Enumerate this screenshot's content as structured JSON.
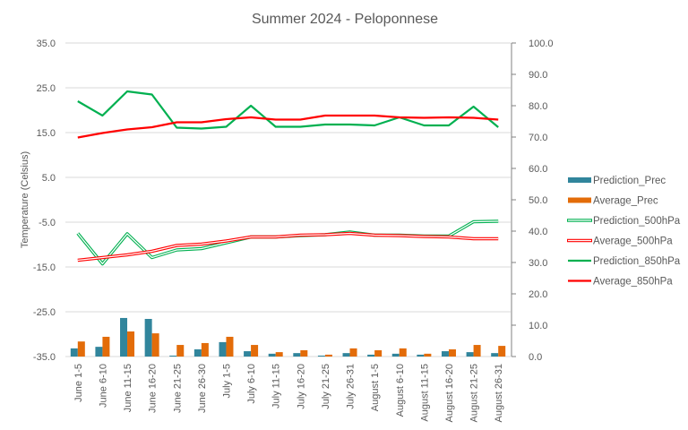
{
  "chart_data": {
    "type": "bar+line",
    "title": "Summer 2024 - Peloponnese",
    "ylabel": "Temperature (Celsius)",
    "ylabel_right": "",
    "ylim": [
      -35,
      35
    ],
    "ylim_right": [
      0,
      100
    ],
    "yticks": [
      "35.0",
      "25.0",
      "15.0",
      "5.0",
      "-5.0",
      "-15.0",
      "-25.0",
      "-35.0"
    ],
    "yticks_right": [
      "100.0",
      "90.0",
      "80.0",
      "70.0",
      "60.0",
      "50.0",
      "40.0",
      "30.0",
      "20.0",
      "10.0",
      "0.0"
    ],
    "grid": true,
    "legend_position": "right",
    "categories": [
      "June 1-5",
      "June 6-10",
      "June 11-15",
      "June 16-20",
      "June 21-25",
      "June 26-30",
      "July 1-5",
      "July 6-10",
      "July 11-15",
      "July 16-20",
      "July 21-25",
      "July 26-31",
      "August 1-5",
      "August 6-10",
      "August 11-15",
      "August 16-20",
      "August 21-25",
      "August 26-31"
    ],
    "series": [
      {
        "name": "Prediction_Prec",
        "kind": "bar",
        "axis": "right",
        "color": "#31859C",
        "values": [
          2.6,
          3.1,
          12.3,
          12.0,
          0.3,
          2.3,
          4.6,
          1.7,
          0.9,
          1.1,
          0.3,
          1.1,
          0.6,
          0.9,
          0.6,
          1.7,
          1.4,
          1.1
        ]
      },
      {
        "name": "Average_Prec",
        "kind": "bar",
        "axis": "right",
        "color": "#E36C09",
        "values": [
          4.8,
          6.3,
          8.0,
          7.4,
          3.7,
          4.3,
          6.3,
          3.7,
          1.4,
          2.0,
          0.6,
          2.6,
          2.0,
          2.6,
          0.9,
          2.3,
          3.7,
          3.4
        ]
      },
      {
        "name": "Prediction_500hPa",
        "kind": "double-line",
        "axis": "left",
        "color": "#00B050",
        "values": [
          -7.5,
          -14.3,
          -7.6,
          -12.9,
          -11.2,
          -10.9,
          -9.6,
          -8.3,
          -8.3,
          -8.0,
          -7.8,
          -7.2,
          -7.9,
          -7.9,
          -8.1,
          -8.1,
          -4.9,
          -4.8
        ]
      },
      {
        "name": "Average_500hPa",
        "kind": "double-line",
        "axis": "left",
        "color": "#FF0000",
        "values": [
          -13.5,
          -12.9,
          -12.3,
          -11.5,
          -10.2,
          -9.9,
          -9.2,
          -8.3,
          -8.3,
          -7.9,
          -7.8,
          -7.5,
          -7.9,
          -8.0,
          -8.2,
          -8.3,
          -8.7,
          -8.7
        ]
      },
      {
        "name": "Prediction_850hPa",
        "kind": "line",
        "axis": "left",
        "color": "#00B050",
        "values": [
          22.0,
          18.8,
          24.2,
          23.5,
          16.1,
          15.9,
          16.3,
          21.0,
          16.3,
          16.3,
          16.8,
          16.8,
          16.6,
          18.4,
          16.6,
          16.6,
          20.8,
          16.2
        ]
      },
      {
        "name": "Average_850hPa",
        "kind": "line",
        "axis": "left",
        "color": "#FF0000",
        "values": [
          13.9,
          14.9,
          15.7,
          16.2,
          17.3,
          17.3,
          18.0,
          18.4,
          17.9,
          17.9,
          18.8,
          18.8,
          18.8,
          18.4,
          18.3,
          18.4,
          18.3,
          17.9
        ]
      }
    ]
  }
}
